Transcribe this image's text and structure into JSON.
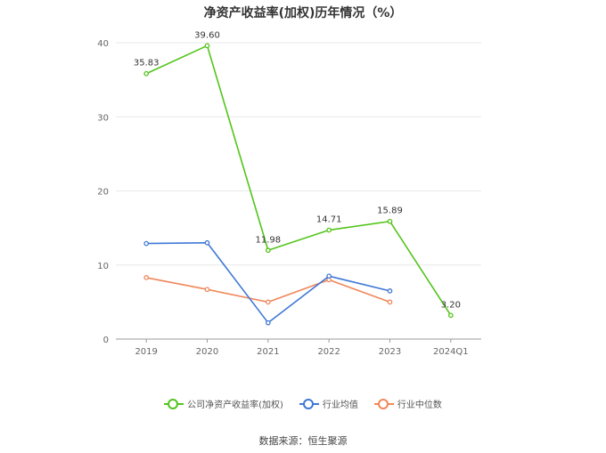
{
  "chart_data": {
    "type": "line",
    "title": "净资产收益率(加权)历年情况（%）",
    "categories": [
      "2019",
      "2020",
      "2021",
      "2022",
      "2023",
      "2024Q1"
    ],
    "ylim": [
      0,
      40
    ],
    "yticks": [
      0,
      10,
      20,
      30,
      40
    ],
    "grid": true,
    "legend_position": "bottom",
    "series": [
      {
        "name": "公司净资产收益率(加权)",
        "color": "#52c41a",
        "values": [
          35.83,
          39.6,
          11.98,
          14.71,
          15.89,
          3.2
        ],
        "labels": [
          "35.83",
          "39.60",
          "11.98",
          "14.71",
          "15.89",
          "3.20"
        ]
      },
      {
        "name": "行业均值",
        "color": "#3f78d6",
        "values": [
          12.9,
          13.0,
          2.2,
          8.5,
          6.5,
          null
        ]
      },
      {
        "name": "行业中位数",
        "color": "#f0875a",
        "values": [
          8.3,
          6.7,
          5.0,
          8.0,
          5.0,
          null
        ]
      }
    ]
  },
  "source": "数据来源：恒生聚源"
}
